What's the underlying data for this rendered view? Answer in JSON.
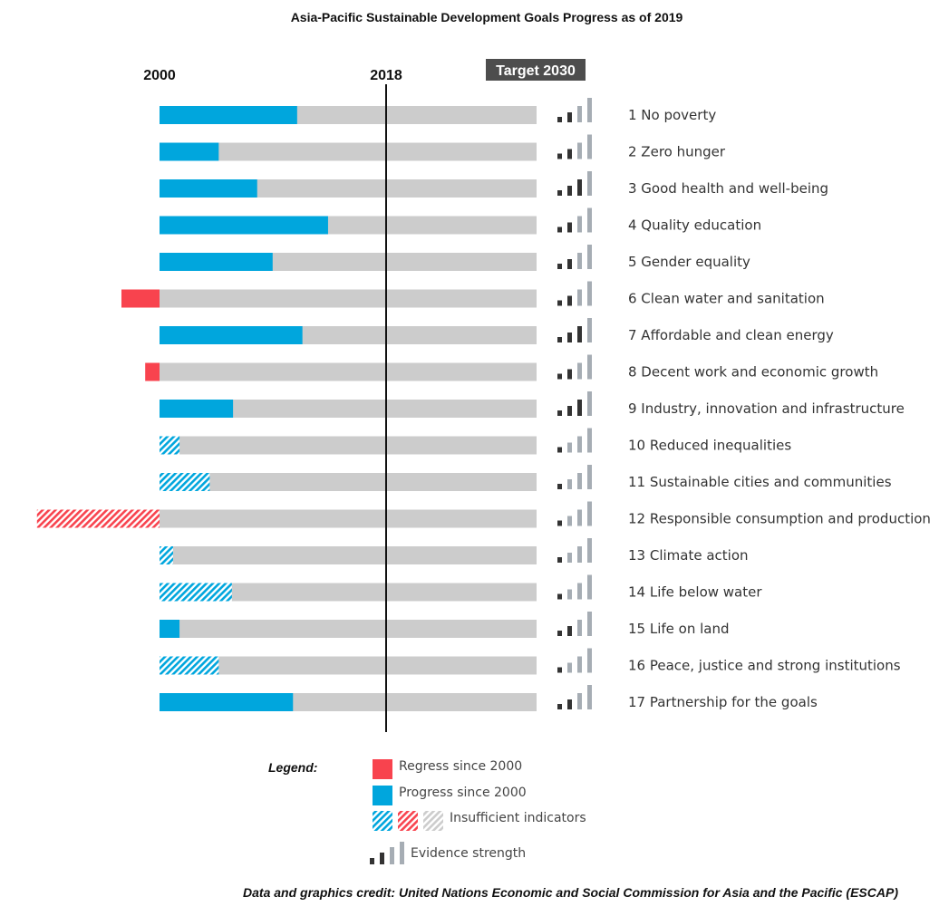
{
  "chart_data": {
    "type": "bar",
    "title": "Asia-Pacific Sustainable Development Goals Progress as of 2019",
    "axis_markers": {
      "start": "2000",
      "current": "2018",
      "target": "Target 2030"
    },
    "scale": {
      "start": 0,
      "current": 0.6,
      "target": 1
    },
    "categories": [
      "1 No poverty",
      "2 Zero hunger",
      "3 Good health and well-being",
      "4 Quality education",
      "5 Gender equality",
      "6 Clean water and sanitation",
      "7 Affordable and clean energy",
      "8 Decent work and economic growth",
      "9 Industry, innovation and infrastructure",
      "10 Reduced inequalities",
      "11 Sustainable cities and communities",
      "12 Responsible consumption and production",
      "13 Climate action",
      "14 Life below water",
      "15 Life on land",
      "16 Peace, justice and strong institutions",
      "17 Partnership for the goals"
    ],
    "values": [
      0.365,
      0.157,
      0.259,
      0.447,
      0.3,
      -0.101,
      0.379,
      -0.038,
      0.195,
      0.053,
      0.133,
      -0.325,
      0.036,
      0.192,
      0.053,
      0.157,
      0.354
    ],
    "status": [
      "progress",
      "progress",
      "progress",
      "progress",
      "progress",
      "regress",
      "progress",
      "regress",
      "progress",
      "insufficient",
      "insufficient",
      "insufficient",
      "insufficient",
      "insufficient",
      "progress",
      "insufficient",
      "progress"
    ],
    "evidence_strength": [
      2,
      2,
      3,
      2,
      2,
      2,
      3,
      2,
      3,
      1,
      1,
      1,
      1,
      1,
      2,
      1,
      2
    ],
    "colors": {
      "progress": "#00a6dd",
      "regress": "#f8434e",
      "remaining": "#cccccc",
      "evidence_on": "#333333",
      "evidence_off": "#a6adb4"
    },
    "legend": {
      "title": "Legend:",
      "items": [
        "Regress since 2000",
        "Progress since 2000",
        "Insufficient indicators",
        "Evidence strength"
      ]
    },
    "credit": "Data and graphics credit: United Nations Economic and Social Commission for Asia and the Pacific (ESCAP)"
  }
}
